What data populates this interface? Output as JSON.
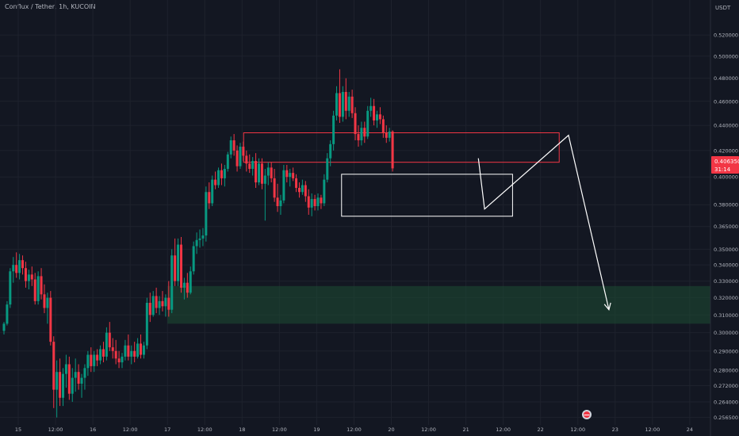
{
  "header": {
    "title": "Conflux / Tether, 1h, KUCOIN",
    "currency": "USDT"
  },
  "price_tag": {
    "price": "0.406350",
    "countdown": "31:14",
    "color": "#f23645"
  },
  "chart_data": {
    "type": "candlestick",
    "title": "Conflux / Tether, 1h, KUCOIN",
    "ylabel": "USDT",
    "scale": "log",
    "ylim": [
      0.253,
      0.545
    ],
    "y_ticks": [
      "0.520000",
      "0.500000",
      "0.480000",
      "0.460000",
      "0.440000",
      "0.420000",
      "0.400000",
      "0.380000",
      "0.365000",
      "0.350000",
      "0.340000",
      "0.330000",
      "0.320000",
      "0.310000",
      "0.300000",
      "0.290000",
      "0.280000",
      "0.272000",
      "0.264000",
      "0.256500"
    ],
    "x_ticks": [
      "15",
      "12:00",
      "16",
      "12:00",
      "17",
      "12:00",
      "18",
      "12:00",
      "19",
      "12:00",
      "20",
      "12:00",
      "21",
      "12:00",
      "22",
      "12:00",
      "23",
      "12:00",
      "24"
    ],
    "grid": true,
    "colors": {
      "up": "#089981",
      "down": "#f23645",
      "background": "#131722",
      "grid": "#1e222d",
      "text": "#b2b5be"
    },
    "candles": [
      {
        "o": 0.301,
        "h": 0.306,
        "l": 0.299,
        "c": 0.305
      },
      {
        "o": 0.305,
        "h": 0.318,
        "l": 0.304,
        "c": 0.316
      },
      {
        "o": 0.316,
        "h": 0.338,
        "l": 0.314,
        "c": 0.336
      },
      {
        "o": 0.336,
        "h": 0.345,
        "l": 0.329,
        "c": 0.34
      },
      {
        "o": 0.34,
        "h": 0.348,
        "l": 0.332,
        "c": 0.335
      },
      {
        "o": 0.335,
        "h": 0.347,
        "l": 0.331,
        "c": 0.343
      },
      {
        "o": 0.343,
        "h": 0.346,
        "l": 0.334,
        "c": 0.338
      },
      {
        "o": 0.338,
        "h": 0.342,
        "l": 0.326,
        "c": 0.33
      },
      {
        "o": 0.33,
        "h": 0.337,
        "l": 0.325,
        "c": 0.334
      },
      {
        "o": 0.334,
        "h": 0.339,
        "l": 0.327,
        "c": 0.331
      },
      {
        "o": 0.331,
        "h": 0.335,
        "l": 0.316,
        "c": 0.318
      },
      {
        "o": 0.318,
        "h": 0.336,
        "l": 0.316,
        "c": 0.333
      },
      {
        "o": 0.333,
        "h": 0.338,
        "l": 0.319,
        "c": 0.322
      },
      {
        "o": 0.322,
        "h": 0.328,
        "l": 0.311,
        "c": 0.314
      },
      {
        "o": 0.314,
        "h": 0.323,
        "l": 0.305,
        "c": 0.32
      },
      {
        "o": 0.32,
        "h": 0.324,
        "l": 0.293,
        "c": 0.295
      },
      {
        "o": 0.295,
        "h": 0.298,
        "l": 0.261,
        "c": 0.27
      },
      {
        "o": 0.27,
        "h": 0.285,
        "l": 0.2565,
        "c": 0.279
      },
      {
        "o": 0.279,
        "h": 0.286,
        "l": 0.262,
        "c": 0.266
      },
      {
        "o": 0.266,
        "h": 0.281,
        "l": 0.262,
        "c": 0.278
      },
      {
        "o": 0.278,
        "h": 0.288,
        "l": 0.271,
        "c": 0.283
      },
      {
        "o": 0.283,
        "h": 0.287,
        "l": 0.265,
        "c": 0.268
      },
      {
        "o": 0.268,
        "h": 0.281,
        "l": 0.264,
        "c": 0.276
      },
      {
        "o": 0.276,
        "h": 0.286,
        "l": 0.269,
        "c": 0.279
      },
      {
        "o": 0.279,
        "h": 0.283,
        "l": 0.27,
        "c": 0.273
      },
      {
        "o": 0.273,
        "h": 0.278,
        "l": 0.266,
        "c": 0.276
      },
      {
        "o": 0.276,
        "h": 0.283,
        "l": 0.27,
        "c": 0.281
      },
      {
        "o": 0.281,
        "h": 0.29,
        "l": 0.277,
        "c": 0.288
      },
      {
        "o": 0.288,
        "h": 0.292,
        "l": 0.279,
        "c": 0.282
      },
      {
        "o": 0.282,
        "h": 0.29,
        "l": 0.279,
        "c": 0.288
      },
      {
        "o": 0.288,
        "h": 0.291,
        "l": 0.282,
        "c": 0.285
      },
      {
        "o": 0.285,
        "h": 0.293,
        "l": 0.283,
        "c": 0.291
      },
      {
        "o": 0.291,
        "h": 0.295,
        "l": 0.284,
        "c": 0.287
      },
      {
        "o": 0.287,
        "h": 0.303,
        "l": 0.285,
        "c": 0.3
      },
      {
        "o": 0.3,
        "h": 0.306,
        "l": 0.29,
        "c": 0.292
      },
      {
        "o": 0.292,
        "h": 0.297,
        "l": 0.286,
        "c": 0.29
      },
      {
        "o": 0.29,
        "h": 0.296,
        "l": 0.283,
        "c": 0.286
      },
      {
        "o": 0.286,
        "h": 0.29,
        "l": 0.281,
        "c": 0.284
      },
      {
        "o": 0.284,
        "h": 0.289,
        "l": 0.281,
        "c": 0.287
      },
      {
        "o": 0.287,
        "h": 0.296,
        "l": 0.285,
        "c": 0.293
      },
      {
        "o": 0.293,
        "h": 0.299,
        "l": 0.285,
        "c": 0.287
      },
      {
        "o": 0.287,
        "h": 0.293,
        "l": 0.283,
        "c": 0.29
      },
      {
        "o": 0.29,
        "h": 0.295,
        "l": 0.284,
        "c": 0.287
      },
      {
        "o": 0.287,
        "h": 0.297,
        "l": 0.286,
        "c": 0.294
      },
      {
        "o": 0.294,
        "h": 0.299,
        "l": 0.286,
        "c": 0.288
      },
      {
        "o": 0.288,
        "h": 0.295,
        "l": 0.286,
        "c": 0.293
      },
      {
        "o": 0.293,
        "h": 0.32,
        "l": 0.291,
        "c": 0.317
      },
      {
        "o": 0.317,
        "h": 0.323,
        "l": 0.306,
        "c": 0.31
      },
      {
        "o": 0.31,
        "h": 0.324,
        "l": 0.309,
        "c": 0.321
      },
      {
        "o": 0.321,
        "h": 0.326,
        "l": 0.311,
        "c": 0.314
      },
      {
        "o": 0.314,
        "h": 0.321,
        "l": 0.31,
        "c": 0.318
      },
      {
        "o": 0.318,
        "h": 0.324,
        "l": 0.312,
        "c": 0.315
      },
      {
        "o": 0.315,
        "h": 0.322,
        "l": 0.309,
        "c": 0.32
      },
      {
        "o": 0.32,
        "h": 0.33,
        "l": 0.309,
        "c": 0.313
      },
      {
        "o": 0.313,
        "h": 0.35,
        "l": 0.311,
        "c": 0.346
      },
      {
        "o": 0.346,
        "h": 0.357,
        "l": 0.327,
        "c": 0.33
      },
      {
        "o": 0.33,
        "h": 0.357,
        "l": 0.327,
        "c": 0.353
      },
      {
        "o": 0.353,
        "h": 0.358,
        "l": 0.323,
        "c": 0.326
      },
      {
        "o": 0.326,
        "h": 0.332,
        "l": 0.319,
        "c": 0.329
      },
      {
        "o": 0.329,
        "h": 0.335,
        "l": 0.32,
        "c": 0.323
      },
      {
        "o": 0.323,
        "h": 0.339,
        "l": 0.322,
        "c": 0.336
      },
      {
        "o": 0.336,
        "h": 0.355,
        "l": 0.334,
        "c": 0.352
      },
      {
        "o": 0.352,
        "h": 0.361,
        "l": 0.347,
        "c": 0.356
      },
      {
        "o": 0.356,
        "h": 0.363,
        "l": 0.351,
        "c": 0.357
      },
      {
        "o": 0.357,
        "h": 0.364,
        "l": 0.352,
        "c": 0.359
      },
      {
        "o": 0.359,
        "h": 0.393,
        "l": 0.355,
        "c": 0.389
      },
      {
        "o": 0.389,
        "h": 0.396,
        "l": 0.377,
        "c": 0.381
      },
      {
        "o": 0.381,
        "h": 0.401,
        "l": 0.379,
        "c": 0.398
      },
      {
        "o": 0.398,
        "h": 0.404,
        "l": 0.391,
        "c": 0.394
      },
      {
        "o": 0.394,
        "h": 0.407,
        "l": 0.392,
        "c": 0.405
      },
      {
        "o": 0.405,
        "h": 0.41,
        "l": 0.394,
        "c": 0.399
      },
      {
        "o": 0.399,
        "h": 0.409,
        "l": 0.393,
        "c": 0.406
      },
      {
        "o": 0.406,
        "h": 0.419,
        "l": 0.404,
        "c": 0.417
      },
      {
        "o": 0.417,
        "h": 0.431,
        "l": 0.414,
        "c": 0.428
      },
      {
        "o": 0.428,
        "h": 0.433,
        "l": 0.416,
        "c": 0.42
      },
      {
        "o": 0.42,
        "h": 0.424,
        "l": 0.404,
        "c": 0.408
      },
      {
        "o": 0.408,
        "h": 0.426,
        "l": 0.406,
        "c": 0.423
      },
      {
        "o": 0.423,
        "h": 0.427,
        "l": 0.412,
        "c": 0.416
      },
      {
        "o": 0.416,
        "h": 0.42,
        "l": 0.404,
        "c": 0.41
      },
      {
        "o": 0.41,
        "h": 0.417,
        "l": 0.403,
        "c": 0.406
      },
      {
        "o": 0.406,
        "h": 0.415,
        "l": 0.401,
        "c": 0.412
      },
      {
        "o": 0.412,
        "h": 0.418,
        "l": 0.392,
        "c": 0.396
      },
      {
        "o": 0.396,
        "h": 0.414,
        "l": 0.394,
        "c": 0.41
      },
      {
        "o": 0.41,
        "h": 0.414,
        "l": 0.391,
        "c": 0.395
      },
      {
        "o": 0.395,
        "h": 0.406,
        "l": 0.369,
        "c": 0.401
      },
      {
        "o": 0.401,
        "h": 0.411,
        "l": 0.394,
        "c": 0.407
      },
      {
        "o": 0.407,
        "h": 0.411,
        "l": 0.396,
        "c": 0.399
      },
      {
        "o": 0.399,
        "h": 0.406,
        "l": 0.382,
        "c": 0.385
      },
      {
        "o": 0.385,
        "h": 0.395,
        "l": 0.375,
        "c": 0.379
      },
      {
        "o": 0.379,
        "h": 0.387,
        "l": 0.373,
        "c": 0.383
      },
      {
        "o": 0.383,
        "h": 0.409,
        "l": 0.381,
        "c": 0.405
      },
      {
        "o": 0.405,
        "h": 0.409,
        "l": 0.396,
        "c": 0.4
      },
      {
        "o": 0.4,
        "h": 0.406,
        "l": 0.393,
        "c": 0.403
      },
      {
        "o": 0.403,
        "h": 0.407,
        "l": 0.397,
        "c": 0.399
      },
      {
        "o": 0.399,
        "h": 0.402,
        "l": 0.389,
        "c": 0.392
      },
      {
        "o": 0.392,
        "h": 0.396,
        "l": 0.385,
        "c": 0.389
      },
      {
        "o": 0.389,
        "h": 0.398,
        "l": 0.387,
        "c": 0.394
      },
      {
        "o": 0.394,
        "h": 0.397,
        "l": 0.382,
        "c": 0.386
      },
      {
        "o": 0.386,
        "h": 0.391,
        "l": 0.373,
        "c": 0.378
      },
      {
        "o": 0.378,
        "h": 0.388,
        "l": 0.372,
        "c": 0.384
      },
      {
        "o": 0.384,
        "h": 0.387,
        "l": 0.376,
        "c": 0.379
      },
      {
        "o": 0.379,
        "h": 0.388,
        "l": 0.376,
        "c": 0.385
      },
      {
        "o": 0.385,
        "h": 0.387,
        "l": 0.377,
        "c": 0.381
      },
      {
        "o": 0.381,
        "h": 0.402,
        "l": 0.379,
        "c": 0.398
      },
      {
        "o": 0.398,
        "h": 0.418,
        "l": 0.396,
        "c": 0.414
      },
      {
        "o": 0.414,
        "h": 0.428,
        "l": 0.408,
        "c": 0.425
      },
      {
        "o": 0.425,
        "h": 0.452,
        "l": 0.42,
        "c": 0.448
      },
      {
        "o": 0.448,
        "h": 0.473,
        "l": 0.444,
        "c": 0.467
      },
      {
        "o": 0.467,
        "h": 0.488,
        "l": 0.442,
        "c": 0.447
      },
      {
        "o": 0.447,
        "h": 0.473,
        "l": 0.443,
        "c": 0.468
      },
      {
        "o": 0.468,
        "h": 0.48,
        "l": 0.445,
        "c": 0.452
      },
      {
        "o": 0.452,
        "h": 0.468,
        "l": 0.447,
        "c": 0.464
      },
      {
        "o": 0.464,
        "h": 0.47,
        "l": 0.446,
        "c": 0.45
      },
      {
        "o": 0.45,
        "h": 0.455,
        "l": 0.428,
        "c": 0.433
      },
      {
        "o": 0.433,
        "h": 0.44,
        "l": 0.423,
        "c": 0.428
      },
      {
        "o": 0.428,
        "h": 0.443,
        "l": 0.424,
        "c": 0.438
      },
      {
        "o": 0.438,
        "h": 0.443,
        "l": 0.426,
        "c": 0.431
      },
      {
        "o": 0.431,
        "h": 0.456,
        "l": 0.429,
        "c": 0.452
      },
      {
        "o": 0.452,
        "h": 0.463,
        "l": 0.447,
        "c": 0.456
      },
      {
        "o": 0.456,
        "h": 0.462,
        "l": 0.44,
        "c": 0.444
      },
      {
        "o": 0.444,
        "h": 0.452,
        "l": 0.438,
        "c": 0.449
      },
      {
        "o": 0.449,
        "h": 0.455,
        "l": 0.441,
        "c": 0.445
      },
      {
        "o": 0.445,
        "h": 0.448,
        "l": 0.43,
        "c": 0.434
      },
      {
        "o": 0.434,
        "h": 0.44,
        "l": 0.426,
        "c": 0.43
      },
      {
        "o": 0.43,
        "h": 0.438,
        "l": 0.427,
        "c": 0.435
      },
      {
        "o": 0.435,
        "h": 0.436,
        "l": 0.404,
        "c": 0.4064
      }
    ],
    "drawings": [
      {
        "type": "rectangle",
        "time_range": [
          "18 00:30",
          "22 06:00"
        ],
        "price_range": [
          0.411,
          0.434
        ],
        "color": "#f23645"
      },
      {
        "type": "rectangle",
        "time_range": [
          "19 08:00",
          "21 15:00"
        ],
        "price_range": [
          0.372,
          0.402
        ],
        "color": "#ffffff"
      },
      {
        "type": "zone",
        "time_range": [
          "17 00:00",
          "end"
        ],
        "price_range": [
          0.305,
          0.327
        ],
        "color": "#1e4d33"
      },
      {
        "type": "path",
        "color": "#ffffff",
        "points": [
          [
            "21 04:00",
            0.414
          ],
          [
            "21 06:00",
            0.377
          ],
          [
            "22 09:00",
            0.432
          ],
          [
            "22 22:00",
            0.313
          ]
        ]
      }
    ]
  }
}
